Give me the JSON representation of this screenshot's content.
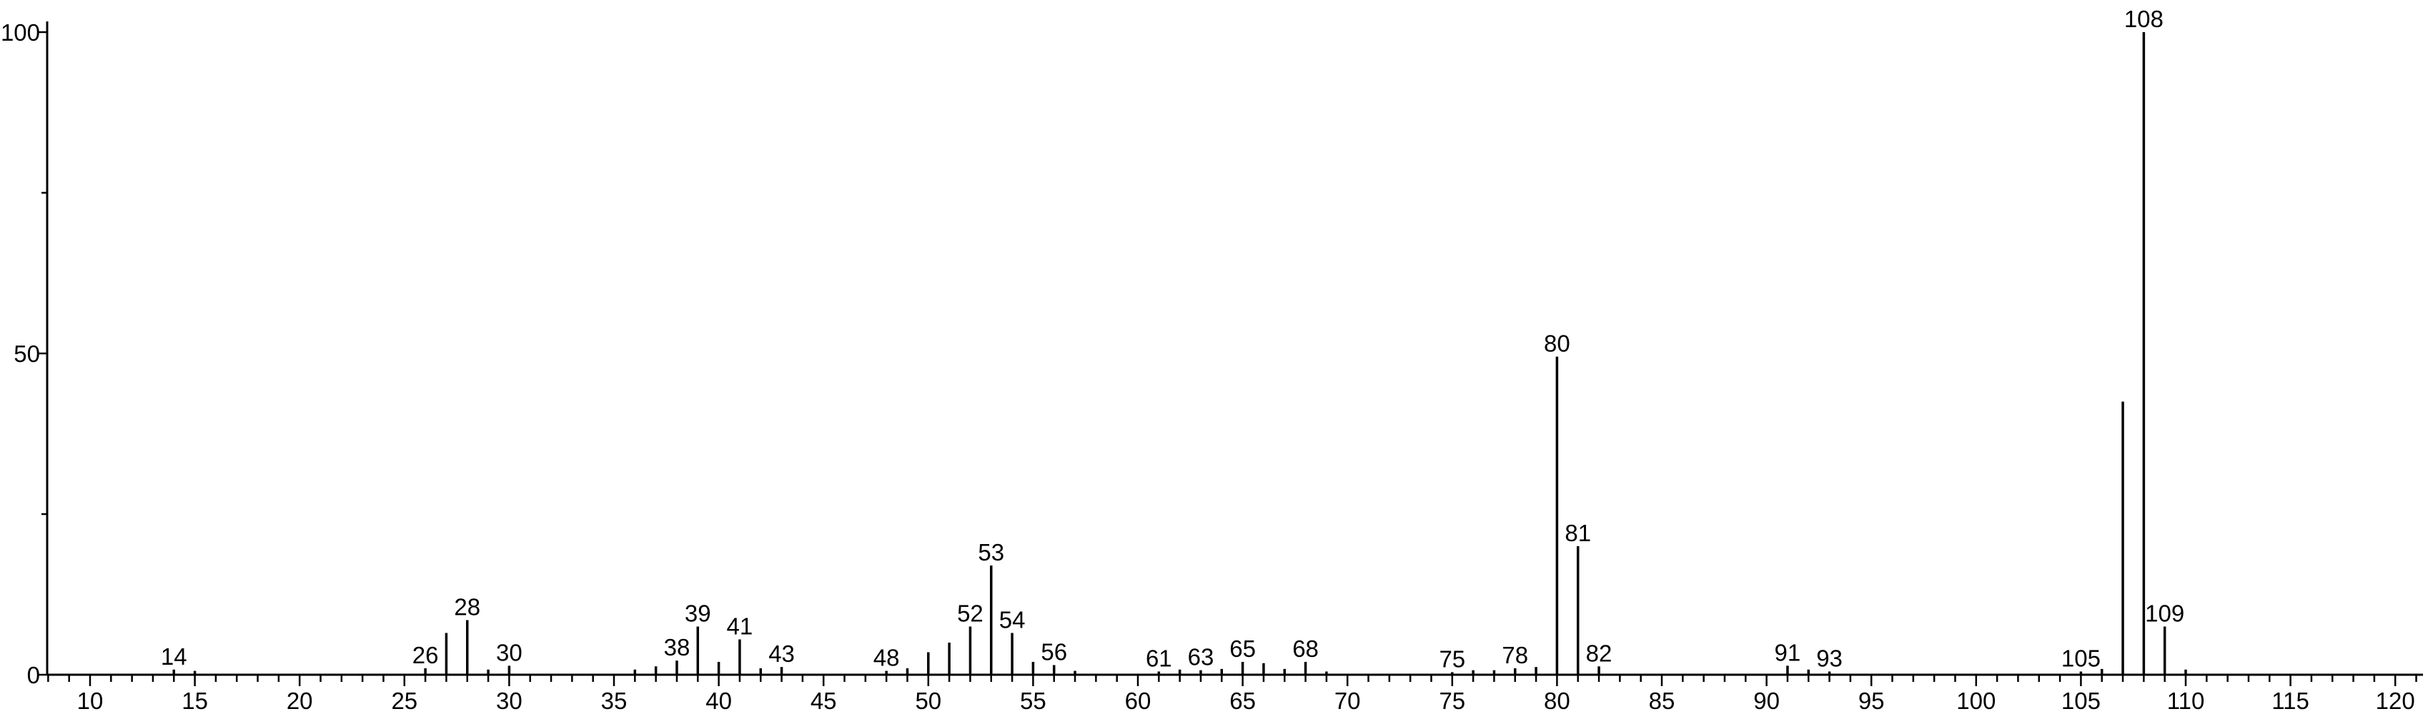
{
  "chart_data": {
    "type": "bar",
    "title": "",
    "xlabel": "",
    "ylabel": "",
    "xlim": [
      8,
      121
    ],
    "ylim": [
      0,
      101
    ],
    "x_ticks": [
      10,
      15,
      20,
      25,
      30,
      35,
      40,
      45,
      50,
      55,
      60,
      65,
      70,
      75,
      80,
      85,
      90,
      95,
      100,
      105,
      110,
      115,
      120
    ],
    "y_ticks": [
      0,
      50,
      100
    ],
    "peaks": [
      {
        "x": 14,
        "y": 0.8,
        "label": "14"
      },
      {
        "x": 15,
        "y": 0.6,
        "label": ""
      },
      {
        "x": 26,
        "y": 1.0,
        "label": "26"
      },
      {
        "x": 27,
        "y": 6.5,
        "label": ""
      },
      {
        "x": 28,
        "y": 8.5,
        "label": "28"
      },
      {
        "x": 29,
        "y": 0.8,
        "label": ""
      },
      {
        "x": 30,
        "y": 1.4,
        "label": "30"
      },
      {
        "x": 36,
        "y": 0.8,
        "label": ""
      },
      {
        "x": 37,
        "y": 1.3,
        "label": ""
      },
      {
        "x": 38,
        "y": 2.2,
        "label": "38"
      },
      {
        "x": 39,
        "y": 7.5,
        "label": "39"
      },
      {
        "x": 40,
        "y": 2.0,
        "label": ""
      },
      {
        "x": 41,
        "y": 5.5,
        "label": "41"
      },
      {
        "x": 42,
        "y": 1.0,
        "label": ""
      },
      {
        "x": 43,
        "y": 1.2,
        "label": "43"
      },
      {
        "x": 48,
        "y": 0.6,
        "label": "48"
      },
      {
        "x": 49,
        "y": 1.0,
        "label": ""
      },
      {
        "x": 50,
        "y": 3.5,
        "label": ""
      },
      {
        "x": 51,
        "y": 5.0,
        "label": ""
      },
      {
        "x": 52,
        "y": 7.5,
        "label": "52"
      },
      {
        "x": 53,
        "y": 17.0,
        "label": "53"
      },
      {
        "x": 54,
        "y": 6.5,
        "label": "54"
      },
      {
        "x": 55,
        "y": 2.0,
        "label": ""
      },
      {
        "x": 56,
        "y": 1.5,
        "label": "56"
      },
      {
        "x": 57,
        "y": 0.6,
        "label": ""
      },
      {
        "x": 61,
        "y": 0.5,
        "label": "61"
      },
      {
        "x": 62,
        "y": 0.8,
        "label": ""
      },
      {
        "x": 63,
        "y": 0.7,
        "label": "63"
      },
      {
        "x": 64,
        "y": 0.9,
        "label": ""
      },
      {
        "x": 65,
        "y": 2.0,
        "label": "65"
      },
      {
        "x": 66,
        "y": 1.8,
        "label": ""
      },
      {
        "x": 67,
        "y": 0.9,
        "label": ""
      },
      {
        "x": 68,
        "y": 2.0,
        "label": "68"
      },
      {
        "x": 69,
        "y": 0.5,
        "label": ""
      },
      {
        "x": 75,
        "y": 0.4,
        "label": "75"
      },
      {
        "x": 76,
        "y": 0.7,
        "label": ""
      },
      {
        "x": 77,
        "y": 0.7,
        "label": ""
      },
      {
        "x": 78,
        "y": 1.0,
        "label": "78"
      },
      {
        "x": 79,
        "y": 1.2,
        "label": ""
      },
      {
        "x": 80,
        "y": 49.5,
        "label": "80"
      },
      {
        "x": 81,
        "y": 20.0,
        "label": "81"
      },
      {
        "x": 82,
        "y": 1.3,
        "label": "82"
      },
      {
        "x": 91,
        "y": 1.4,
        "label": "91"
      },
      {
        "x": 92,
        "y": 0.8,
        "label": ""
      },
      {
        "x": 93,
        "y": 0.5,
        "label": "93"
      },
      {
        "x": 105,
        "y": 0.5,
        "label": "105"
      },
      {
        "x": 106,
        "y": 0.9,
        "label": ""
      },
      {
        "x": 107,
        "y": 42.5,
        "label": ""
      },
      {
        "x": 108,
        "y": 100.0,
        "label": "108"
      },
      {
        "x": 109,
        "y": 7.5,
        "label": "109"
      },
      {
        "x": 110,
        "y": 0.8,
        "label": ""
      }
    ]
  }
}
